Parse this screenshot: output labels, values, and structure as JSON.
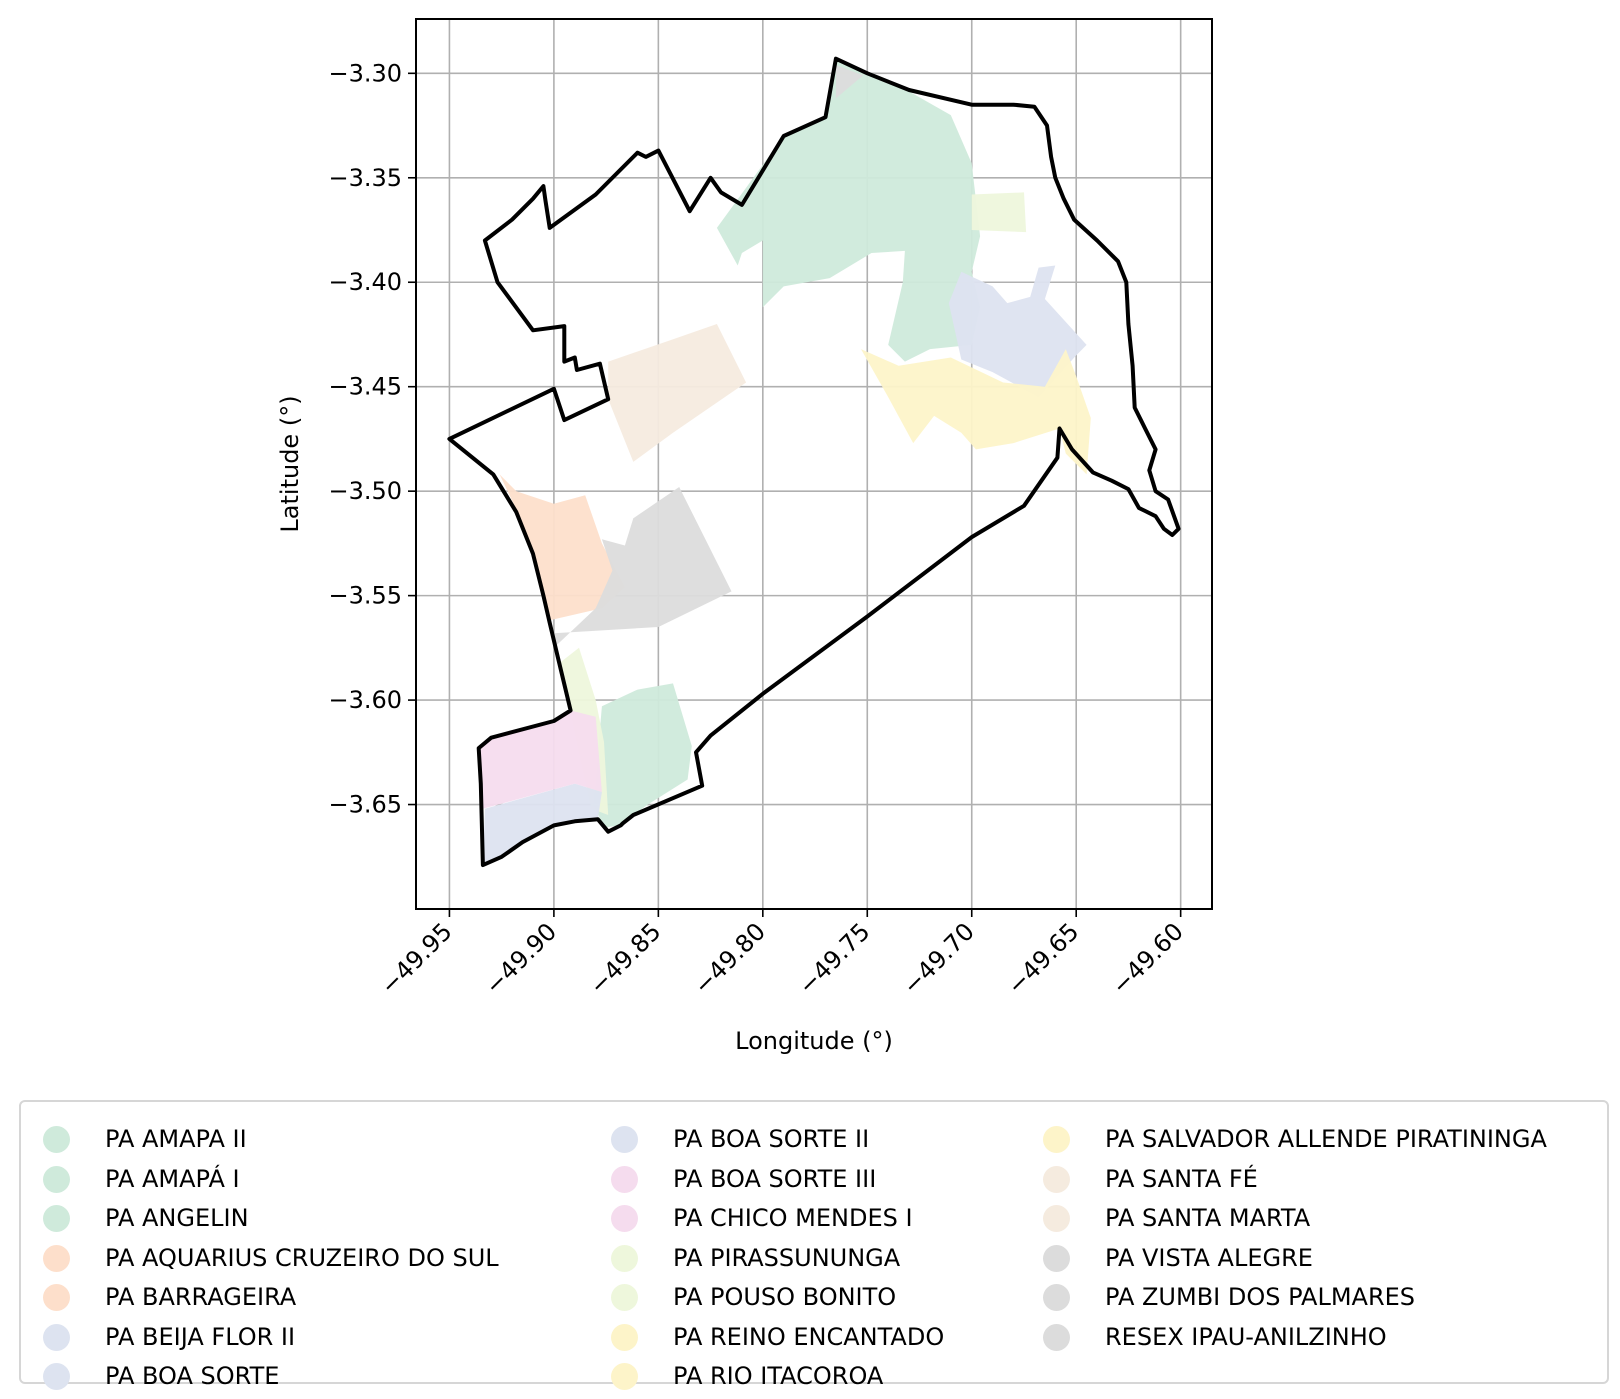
{
  "chart_data": {
    "type": "map",
    "xlabel": "Longitude (°)",
    "ylabel": "Latitude (°)",
    "xlim": [
      -49.966,
      -49.585
    ],
    "ylim": [
      -3.7,
      -3.274
    ],
    "xticks": [
      -49.95,
      -49.9,
      -49.85,
      -49.8,
      -49.75,
      -49.7,
      -49.65,
      -49.6
    ],
    "xtick_labels": [
      "−49.95",
      "−49.90",
      "−49.85",
      "−49.80",
      "−49.75",
      "−49.70",
      "−49.65",
      "−49.60"
    ],
    "yticks": [
      -3.3,
      -3.35,
      -3.4,
      -3.45,
      -3.5,
      -3.55,
      -3.6,
      -3.65
    ],
    "ytick_labels": [
      "−3.30",
      "−3.35",
      "−3.40",
      "−3.45",
      "−3.50",
      "−3.55",
      "−3.60",
      "−3.65"
    ],
    "grid": true,
    "legend_position": "bottom",
    "boundary": {
      "stroke": "#000000",
      "coords": [
        [
          -49.765,
          -3.293
        ],
        [
          -49.75,
          -3.3
        ],
        [
          -49.73,
          -3.308
        ],
        [
          -49.7,
          -3.315
        ],
        [
          -49.68,
          -3.315
        ],
        [
          -49.67,
          -3.316
        ],
        [
          -49.664,
          -3.325
        ],
        [
          -49.662,
          -3.34
        ],
        [
          -49.66,
          -3.35
        ],
        [
          -49.656,
          -3.36
        ],
        [
          -49.651,
          -3.37
        ],
        [
          -49.64,
          -3.38
        ],
        [
          -49.63,
          -3.39
        ],
        [
          -49.626,
          -3.4
        ],
        [
          -49.625,
          -3.42
        ],
        [
          -49.623,
          -3.44
        ],
        [
          -49.622,
          -3.46
        ],
        [
          -49.617,
          -3.47
        ],
        [
          -49.612,
          -3.48
        ],
        [
          -49.615,
          -3.49
        ],
        [
          -49.612,
          -3.5
        ],
        [
          -49.606,
          -3.504
        ],
        [
          -49.601,
          -3.518
        ],
        [
          -49.604,
          -3.521
        ],
        [
          -49.608,
          -3.518
        ],
        [
          -49.612,
          -3.512
        ],
        [
          -49.62,
          -3.508
        ],
        [
          -49.625,
          -3.499
        ],
        [
          -49.633,
          -3.495
        ],
        [
          -49.642,
          -3.491
        ],
        [
          -49.652,
          -3.48
        ],
        [
          -49.658,
          -3.47
        ],
        [
          -49.659,
          -3.484
        ],
        [
          -49.675,
          -3.507
        ],
        [
          -49.7,
          -3.522
        ],
        [
          -49.75,
          -3.56
        ],
        [
          -49.8,
          -3.597
        ],
        [
          -49.825,
          -3.617
        ],
        [
          -49.832,
          -3.625
        ],
        [
          -49.829,
          -3.641
        ],
        [
          -49.862,
          -3.655
        ],
        [
          -49.867,
          -3.659
        ],
        [
          -49.868,
          -3.66
        ],
        [
          -49.874,
          -3.663
        ],
        [
          -49.879,
          -3.657
        ],
        [
          -49.89,
          -3.658
        ],
        [
          -49.9,
          -3.66
        ],
        [
          -49.915,
          -3.668
        ],
        [
          -49.925,
          -3.675
        ],
        [
          -49.934,
          -3.679
        ],
        [
          -49.935,
          -3.64
        ],
        [
          -49.936,
          -3.623
        ],
        [
          -49.93,
          -3.618
        ],
        [
          -49.9,
          -3.61
        ],
        [
          -49.892,
          -3.605
        ],
        [
          -49.898,
          -3.58
        ],
        [
          -49.902,
          -3.563
        ],
        [
          -49.905,
          -3.55
        ],
        [
          -49.91,
          -3.53
        ],
        [
          -49.918,
          -3.51
        ],
        [
          -49.929,
          -3.492
        ],
        [
          -49.95,
          -3.475
        ],
        [
          -49.9,
          -3.451
        ],
        [
          -49.895,
          -3.466
        ],
        [
          -49.874,
          -3.456
        ],
        [
          -49.878,
          -3.439
        ],
        [
          -49.889,
          -3.442
        ],
        [
          -49.89,
          -3.436
        ],
        [
          -49.895,
          -3.438
        ],
        [
          -49.895,
          -3.421
        ],
        [
          -49.91,
          -3.423
        ],
        [
          -49.927,
          -3.4
        ],
        [
          -49.933,
          -3.38
        ],
        [
          -49.92,
          -3.37
        ],
        [
          -49.91,
          -3.36
        ],
        [
          -49.905,
          -3.354
        ],
        [
          -49.904,
          -3.361
        ],
        [
          -49.902,
          -3.374
        ],
        [
          -49.88,
          -3.358
        ],
        [
          -49.86,
          -3.338
        ],
        [
          -49.856,
          -3.34
        ],
        [
          -49.85,
          -3.337
        ],
        [
          -49.835,
          -3.366
        ],
        [
          -49.825,
          -3.35
        ],
        [
          -49.82,
          -3.357
        ],
        [
          -49.81,
          -3.363
        ],
        [
          -49.79,
          -3.33
        ],
        [
          -49.77,
          -3.321
        ],
        [
          -49.765,
          -3.293
        ]
      ]
    },
    "areas": [
      {
        "name": "PA ANGELIN",
        "color": "#cfeadb",
        "coords": [
          [
            -49.76,
            -3.295
          ],
          [
            -49.74,
            -3.303
          ],
          [
            -49.71,
            -3.32
          ],
          [
            -49.7,
            -3.343
          ],
          [
            -49.696,
            -3.378
          ],
          [
            -49.7,
            -3.395
          ],
          [
            -49.696,
            -3.412
          ],
          [
            -49.7,
            -3.43
          ],
          [
            -49.72,
            -3.432
          ],
          [
            -49.732,
            -3.438
          ],
          [
            -49.74,
            -3.43
          ],
          [
            -49.733,
            -3.4
          ],
          [
            -49.732,
            -3.385
          ],
          [
            -49.748,
            -3.386
          ],
          [
            -49.768,
            -3.398
          ],
          [
            -49.79,
            -3.402
          ],
          [
            -49.8,
            -3.412
          ],
          [
            -49.8,
            -3.38
          ],
          [
            -49.81,
            -3.386
          ],
          [
            -49.812,
            -3.392
          ],
          [
            -49.822,
            -3.374
          ],
          [
            -49.79,
            -3.33
          ],
          [
            -49.77,
            -3.321
          ],
          [
            -49.765,
            -3.293
          ]
        ]
      },
      {
        "name": "PA AMAPA II",
        "color": "#cfeadb",
        "coords": [
          [
            -49.877,
            -3.603
          ],
          [
            -49.86,
            -3.595
          ],
          [
            -49.843,
            -3.592
          ],
          [
            -49.834,
            -3.622
          ],
          [
            -49.836,
            -3.638
          ],
          [
            -49.855,
            -3.65
          ],
          [
            -49.862,
            -3.655
          ],
          [
            -49.868,
            -3.66
          ],
          [
            -49.876,
            -3.661
          ],
          [
            -49.881,
            -3.65
          ]
        ]
      },
      {
        "name": "PA PIRASSUNUNGA",
        "color": "#eef7dc",
        "coords": [
          [
            -49.7,
            -3.358
          ],
          [
            -49.675,
            -3.357
          ],
          [
            -49.674,
            -3.376
          ],
          [
            -49.7,
            -3.375
          ]
        ]
      },
      {
        "name": "PA POUSO BONITO",
        "color": "#eef7dc",
        "coords": [
          [
            -49.897,
            -3.582
          ],
          [
            -49.888,
            -3.575
          ],
          [
            -49.88,
            -3.6
          ],
          [
            -49.876,
            -3.62
          ],
          [
            -49.874,
            -3.655
          ],
          [
            -49.882,
            -3.652
          ],
          [
            -49.888,
            -3.625
          ],
          [
            -49.892,
            -3.605
          ]
        ]
      },
      {
        "name": "PA BOA SORTE II",
        "color": "#dde3f0",
        "coords": [
          [
            -49.705,
            -3.395
          ],
          [
            -49.69,
            -3.402
          ],
          [
            -49.683,
            -3.41
          ],
          [
            -49.672,
            -3.407
          ],
          [
            -49.668,
            -3.393
          ],
          [
            -49.66,
            -3.392
          ],
          [
            -49.665,
            -3.408
          ],
          [
            -49.645,
            -3.43
          ],
          [
            -49.65,
            -3.435
          ],
          [
            -49.668,
            -3.455
          ],
          [
            -49.69,
            -3.443
          ],
          [
            -49.705,
            -3.437
          ],
          [
            -49.711,
            -3.41
          ]
        ]
      },
      {
        "name": "PA BEIJA FLOR II",
        "color": "#dde3f0",
        "coords": [
          [
            -49.933,
            -3.652
          ],
          [
            -49.89,
            -3.64
          ],
          [
            -49.877,
            -3.644
          ],
          [
            -49.879,
            -3.657
          ],
          [
            -49.89,
            -3.658
          ],
          [
            -49.9,
            -3.66
          ],
          [
            -49.915,
            -3.668
          ],
          [
            -49.925,
            -3.675
          ],
          [
            -49.934,
            -3.679
          ]
        ]
      },
      {
        "name": "PA BOA SORTE III",
        "color": "#f5dcee",
        "coords": [
          [
            -49.936,
            -3.623
          ],
          [
            -49.93,
            -3.618
          ],
          [
            -49.9,
            -3.61
          ],
          [
            -49.892,
            -3.605
          ],
          [
            -49.88,
            -3.608
          ],
          [
            -49.877,
            -3.644
          ],
          [
            -49.89,
            -3.64
          ],
          [
            -49.934,
            -3.652
          ]
        ]
      },
      {
        "name": "PA SALVADOR ALLENDE PIRATININGA",
        "color": "#fdf4c9",
        "coords": [
          [
            -49.753,
            -3.432
          ],
          [
            -49.735,
            -3.44
          ],
          [
            -49.71,
            -3.436
          ],
          [
            -49.685,
            -3.448
          ],
          [
            -49.665,
            -3.45
          ],
          [
            -49.655,
            -3.432
          ],
          [
            -49.65,
            -3.445
          ],
          [
            -49.643,
            -3.465
          ],
          [
            -49.645,
            -3.492
          ],
          [
            -49.655,
            -3.482
          ],
          [
            -49.658,
            -3.47
          ],
          [
            -49.68,
            -3.477
          ],
          [
            -49.698,
            -3.48
          ],
          [
            -49.705,
            -3.472
          ],
          [
            -49.718,
            -3.464
          ],
          [
            -49.728,
            -3.477
          ],
          [
            -49.74,
            -3.455
          ]
        ]
      },
      {
        "name": "PA AQUARIUS CRUZEIRO DO SUL",
        "color": "#fddfcb",
        "coords": [
          [
            -49.926,
            -3.492
          ],
          [
            -49.918,
            -3.5
          ],
          [
            -49.9,
            -3.506
          ],
          [
            -49.885,
            -3.502
          ],
          [
            -49.877,
            -3.525
          ],
          [
            -49.866,
            -3.546
          ],
          [
            -49.877,
            -3.556
          ],
          [
            -49.903,
            -3.562
          ],
          [
            -49.908,
            -3.54
          ],
          [
            -49.915,
            -3.515
          ]
        ]
      },
      {
        "name": "PA SANTA FÉ",
        "color": "#f5ebdf",
        "coords": [
          [
            -49.874,
            -3.438
          ],
          [
            -49.874,
            -3.456
          ],
          [
            -49.862,
            -3.486
          ],
          [
            -49.843,
            -3.472
          ],
          [
            -49.808,
            -3.448
          ],
          [
            -49.822,
            -3.42
          ],
          [
            -49.845,
            -3.428
          ]
        ]
      },
      {
        "name": "PA VISTA ALEGRE",
        "color": "#dcdcdc",
        "coords": [
          [
            -49.877,
            -3.523
          ],
          [
            -49.866,
            -3.526
          ],
          [
            -49.862,
            -3.513
          ],
          [
            -49.84,
            -3.498
          ],
          [
            -49.815,
            -3.548
          ],
          [
            -49.85,
            -3.565
          ],
          [
            -49.9,
            -3.568
          ],
          [
            -49.9,
            -3.575
          ],
          [
            -49.88,
            -3.556
          ],
          [
            -49.872,
            -3.538
          ]
        ]
      },
      {
        "name": "RESEX IPAU-ANILZINHO",
        "color": "#dcdcdc",
        "coords": [
          [
            -49.765,
            -3.296
          ],
          [
            -49.752,
            -3.301
          ],
          [
            -49.765,
            -3.312
          ]
        ]
      }
    ],
    "legend": [
      {
        "label": "PA AMAPA II",
        "color": "#cfeadb"
      },
      {
        "label": "PA AMAPÁ I",
        "color": "#cfeadb"
      },
      {
        "label": "PA ANGELIN",
        "color": "#cfeadb"
      },
      {
        "label": "PA AQUARIUS CRUZEIRO DO SUL",
        "color": "#fddfcb"
      },
      {
        "label": "PA BARRAGEIRA",
        "color": "#fddfcb"
      },
      {
        "label": "PA BEIJA FLOR II",
        "color": "#dde3f0"
      },
      {
        "label": "PA BOA SORTE",
        "color": "#dde3f0"
      },
      {
        "label": "PA BOA SORTE II",
        "color": "#dde3f0"
      },
      {
        "label": "PA BOA SORTE III",
        "color": "#f5dcee"
      },
      {
        "label": "PA CHICO MENDES I",
        "color": "#f5dcee"
      },
      {
        "label": "PA PIRASSUNUNGA",
        "color": "#eef7dc"
      },
      {
        "label": "PA POUSO BONITO",
        "color": "#eef7dc"
      },
      {
        "label": "PA REINO ENCANTADO",
        "color": "#fdf4c9"
      },
      {
        "label": "PA RIO ITACOROA",
        "color": "#fdf4c9"
      },
      {
        "label": "PA SALVADOR ALLENDE PIRATININGA",
        "color": "#fdf4c9"
      },
      {
        "label": "PA SANTA FÉ",
        "color": "#f5ebdf"
      },
      {
        "label": "PA SANTA MARTA",
        "color": "#f5ebdf"
      },
      {
        "label": "PA VISTA ALEGRE",
        "color": "#dcdcdc"
      },
      {
        "label": "PA ZUMBI DOS PALMARES",
        "color": "#dcdcdc"
      },
      {
        "label": "RESEX IPAU-ANILZINHO",
        "color": "#dcdcdc"
      }
    ],
    "legend_columns": 3
  }
}
